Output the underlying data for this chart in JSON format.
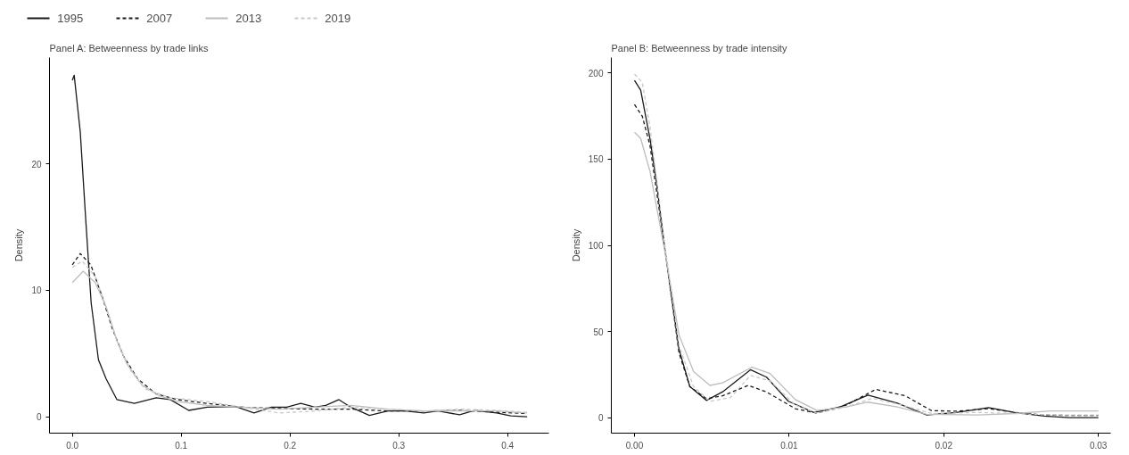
{
  "chart_data": [
    {
      "type": "line",
      "title": "Panel A: Betweenness by trade links",
      "ylabel": "Density",
      "legend": "top",
      "grid": false,
      "marker": "none",
      "xlim": [
        -0.021,
        0.438
      ],
      "ylim": [
        -1.3,
        28.4
      ],
      "xticks": [
        {
          "value": 0,
          "label": "0.0"
        },
        0.1,
        0.2,
        0.3,
        0.4
      ],
      "yticks": [
        0,
        10,
        20
      ],
      "series": [
        {
          "name": "1995",
          "color": "#1a1a1a",
          "line_style": "solid",
          "x": [
            0.0,
            0.0017,
            0.0073,
            0.0123,
            0.0173,
            0.024,
            0.031,
            0.041,
            0.057,
            0.077,
            0.09,
            0.107,
            0.124,
            0.15,
            0.167,
            0.183,
            0.197,
            0.21,
            0.223,
            0.233,
            0.245,
            0.256,
            0.273,
            0.29,
            0.306,
            0.323,
            0.336,
            0.356,
            0.37,
            0.39,
            0.403,
            0.418
          ],
          "values": [
            26.6,
            27.0,
            22.5,
            15.6,
            9.0,
            4.5,
            3.0,
            1.35,
            1.05,
            1.5,
            1.35,
            0.5,
            0.75,
            0.8,
            0.3,
            0.75,
            0.75,
            1.05,
            0.75,
            0.9,
            1.35,
            0.75,
            0.1,
            0.45,
            0.45,
            0.3,
            0.45,
            0.15,
            0.5,
            0.3,
            0.06,
            0.0
          ]
        },
        {
          "name": "2007",
          "color": "#1a1a1a",
          "line_style": "dashed",
          "x": [
            0.0,
            0.0073,
            0.017,
            0.027,
            0.037,
            0.047,
            0.06,
            0.077,
            0.097,
            0.124,
            0.157,
            0.19,
            0.223,
            0.256,
            0.29,
            0.323,
            0.356,
            0.39,
            0.418
          ],
          "values": [
            12.0,
            12.9,
            12.0,
            9.6,
            6.9,
            4.8,
            3.0,
            1.8,
            1.35,
            1.05,
            0.75,
            0.65,
            0.6,
            0.6,
            0.45,
            0.45,
            0.5,
            0.35,
            0.25
          ]
        },
        {
          "name": "2013",
          "color": "#bdbdbd",
          "line_style": "solid",
          "x": [
            0.0,
            0.01,
            0.021,
            0.031,
            0.041,
            0.05,
            0.064,
            0.08,
            0.097,
            0.124,
            0.157,
            0.19,
            0.223,
            0.256,
            0.29,
            0.323,
            0.356,
            0.39,
            0.418
          ],
          "values": [
            10.6,
            11.5,
            10.6,
            8.7,
            6.0,
            4.2,
            2.5,
            1.65,
            1.2,
            0.9,
            0.75,
            0.6,
            0.75,
            0.9,
            0.6,
            0.45,
            0.45,
            0.45,
            0.3
          ]
        },
        {
          "name": "2019",
          "color": "#c8c8c8",
          "line_style": "dashed",
          "x": [
            0.0,
            0.009,
            0.021,
            0.031,
            0.041,
            0.054,
            0.067,
            0.09,
            0.124,
            0.157,
            0.19,
            0.223,
            0.256,
            0.29,
            0.323,
            0.356,
            0.39,
            0.418
          ],
          "values": [
            11.8,
            12.3,
            11.1,
            8.7,
            6.0,
            3.6,
            2.2,
            1.5,
            1.2,
            0.75,
            0.3,
            0.45,
            0.75,
            0.6,
            0.45,
            0.6,
            0.5,
            0.35
          ]
        }
      ]
    },
    {
      "type": "line",
      "title": "Panel B: Betweenness by trade intensity",
      "ylabel": "Density",
      "grid": false,
      "marker": "none",
      "xlim": [
        -0.0015,
        0.0308
      ],
      "ylim": [
        -9,
        209
      ],
      "xticks": [
        {
          "value": 0,
          "label": "0.00"
        },
        0.01,
        0.02,
        0.03
      ],
      "yticks": [
        0,
        50,
        100,
        150,
        200
      ],
      "series": [
        {
          "color": "#1a1a1a",
          "line_style": "solid",
          "x": [
            0.0,
            0.0004,
            0.001,
            0.00146,
            0.00193,
            0.0024,
            0.00288,
            0.00358,
            0.00465,
            0.0057,
            0.0075,
            0.00854,
            0.00995,
            0.0116,
            0.0133,
            0.0151,
            0.017,
            0.0189,
            0.0208,
            0.0229,
            0.0246,
            0.0265,
            0.0281,
            0.03
          ],
          "values": [
            195.7,
            190,
            162,
            134,
            100,
            70,
            39.6,
            18,
            10,
            15,
            27.8,
            23.5,
            9.5,
            3,
            6.2,
            13.1,
            8.4,
            1.5,
            3,
            5.8,
            3,
            0.9,
            0,
            0
          ]
        },
        {
          "color": "#1a1a1a",
          "line_style": "dashed",
          "x": [
            0.0,
            0.0005,
            0.001,
            0.00193,
            0.00288,
            0.00358,
            0.00465,
            0.0057,
            0.00736,
            0.00854,
            0.0104,
            0.0118,
            0.0137,
            0.0156,
            0.0175,
            0.0192,
            0.0208,
            0.0229,
            0.0246,
            0.0265,
            0.0281,
            0.03
          ],
          "values": [
            181.7,
            175,
            158,
            100,
            37.5,
            18,
            11,
            12.7,
            18.7,
            14.9,
            5.2,
            2.6,
            7.3,
            16.4,
            12.7,
            4.1,
            3.7,
            5.2,
            3,
            1.5,
            1.3,
            1.3
          ]
        },
        {
          "color": "#bdbdbd",
          "line_style": "solid",
          "x": [
            0.0,
            0.0004,
            0.001,
            0.00193,
            0.00288,
            0.00382,
            0.00488,
            0.0057,
            0.0076,
            0.00877,
            0.0104,
            0.0118,
            0.0137,
            0.0151,
            0.017,
            0.0189,
            0.0222,
            0.0246,
            0.0269,
            0.03
          ],
          "values": [
            165.6,
            162,
            143,
            98,
            48,
            26.7,
            18.7,
            20.2,
            29.3,
            25.6,
            10.5,
            4.1,
            6.2,
            9,
            6.2,
            1.9,
            1.5,
            2.4,
            3.9,
            3.9
          ]
        },
        {
          "color": "#c8c8c8",
          "line_style": "dashed",
          "x": [
            0.0,
            0.0005,
            0.001,
            0.00193,
            0.00288,
            0.00382,
            0.00488,
            0.0062,
            0.0075,
            0.00877,
            0.0104,
            0.0118,
            0.0137,
            0.0154,
            0.0173,
            0.0192,
            0.0222,
            0.0246,
            0.0269,
            0.03
          ],
          "values": [
            199.4,
            194.6,
            168.8,
            102,
            41.8,
            18,
            9.5,
            11.6,
            24.5,
            21.3,
            7.3,
            2.6,
            6.2,
            11.2,
            7.3,
            2.4,
            3,
            2.4,
            1.5,
            1.5
          ]
        }
      ]
    }
  ]
}
